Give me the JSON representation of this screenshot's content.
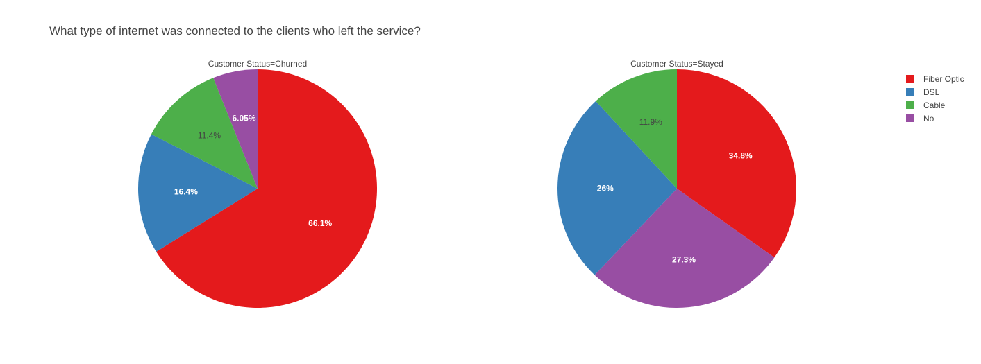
{
  "chart_title": "What type of internet was connected to the clients who left the service?",
  "colors": {
    "Fiber Optic": "#e41a1c",
    "DSL": "#377eb8",
    "Cable": "#4daf4a",
    "No": "#984ea3"
  },
  "legend": {
    "items": [
      "Fiber Optic",
      "DSL",
      "Cable",
      "No"
    ],
    "placement": "top-right"
  },
  "chart_data": [
    {
      "type": "pie",
      "title": "Customer Status=Churned",
      "labels": [
        "Fiber Optic",
        "DSL",
        "Cable",
        "No"
      ],
      "values": [
        66.1,
        16.4,
        11.4,
        6.05
      ],
      "text_labels": [
        "66.1%",
        "16.4%",
        "11.4%",
        "6.05%"
      ],
      "direction": "clockwise",
      "sort_descending": true
    },
    {
      "type": "pie",
      "title": "Customer Status=Stayed",
      "labels": [
        "Fiber Optic",
        "No",
        "DSL",
        "Cable"
      ],
      "values": [
        34.8,
        27.3,
        26.0,
        11.9
      ],
      "text_labels": [
        "34.8%",
        "27.3%",
        "26%",
        "11.9%"
      ],
      "direction": "clockwise",
      "sort_descending": true
    }
  ]
}
